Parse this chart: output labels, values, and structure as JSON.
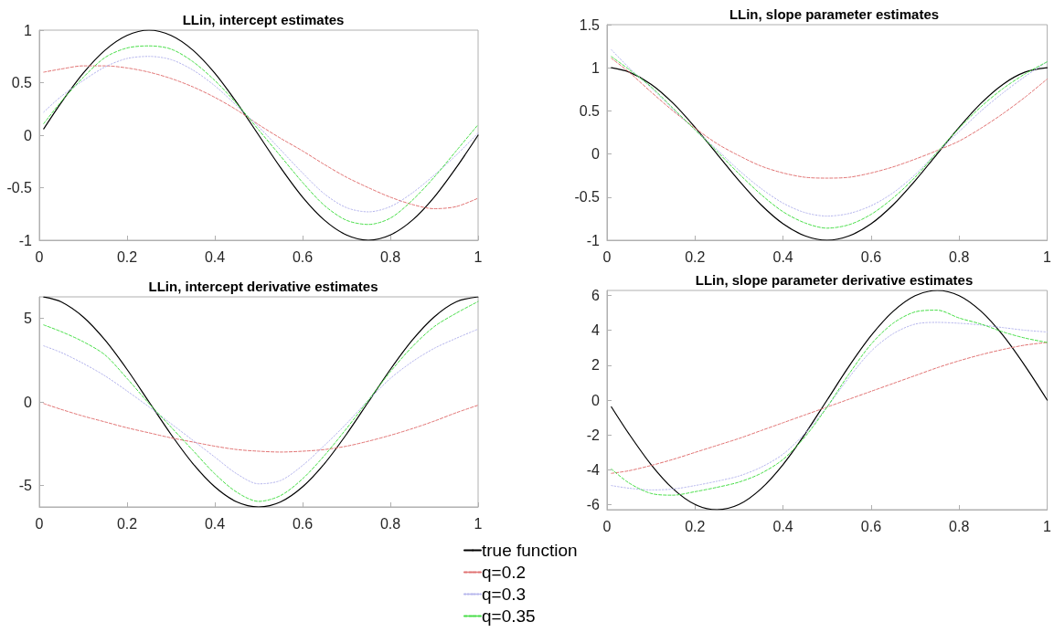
{
  "chart_data": [
    {
      "type": "line",
      "title": "LLin, intercept estimates",
      "x": [
        0.01,
        0.05,
        0.1,
        0.15,
        0.2,
        0.25,
        0.3,
        0.35,
        0.4,
        0.45,
        0.5,
        0.55,
        0.6,
        0.65,
        0.7,
        0.75,
        0.8,
        0.85,
        0.9,
        0.95,
        1
      ],
      "xlim": [
        0,
        1
      ],
      "xticks": [
        0,
        0.2,
        0.4,
        0.6,
        0.8,
        1
      ],
      "ylim": [
        -1,
        1
      ],
      "yticks": [
        -1,
        -0.5,
        0,
        0.5,
        1
      ],
      "series": [
        {
          "color": "#000000",
          "line_style": "solid",
          "values": [
            0.06,
            0.31,
            0.59,
            0.81,
            0.95,
            1,
            0.95,
            0.81,
            0.59,
            0.31,
            0,
            -0.31,
            -0.59,
            -0.81,
            -0.95,
            -1,
            -0.95,
            -0.81,
            -0.59,
            -0.31,
            0
          ]
        },
        {
          "color": "#e07070",
          "line_style": "dashed",
          "values": [
            0.6,
            0.63,
            0.66,
            0.66,
            0.64,
            0.6,
            0.54,
            0.46,
            0.36,
            0.24,
            0.1,
            -0.03,
            -0.15,
            -0.28,
            -0.4,
            -0.5,
            -0.59,
            -0.66,
            -0.7,
            -0.68,
            -0.6
          ]
        },
        {
          "color": "#b4b4ec",
          "line_style": "dotted",
          "values": [
            0.22,
            0.37,
            0.52,
            0.65,
            0.73,
            0.75,
            0.72,
            0.62,
            0.47,
            0.28,
            0.08,
            -0.14,
            -0.36,
            -0.56,
            -0.69,
            -0.73,
            -0.68,
            -0.55,
            -0.38,
            -0.19,
            0.02
          ]
        },
        {
          "color": "#44dd44",
          "line_style": "dashed",
          "values": [
            0.11,
            0.32,
            0.55,
            0.74,
            0.83,
            0.85,
            0.82,
            0.7,
            0.52,
            0.3,
            0.05,
            -0.2,
            -0.45,
            -0.67,
            -0.81,
            -0.85,
            -0.79,
            -0.62,
            -0.4,
            -0.15,
            0.1
          ]
        }
      ]
    },
    {
      "type": "line",
      "title": "LLin, slope parameter estimates",
      "x": [
        0.01,
        0.05,
        0.1,
        0.15,
        0.2,
        0.25,
        0.3,
        0.35,
        0.4,
        0.45,
        0.5,
        0.55,
        0.6,
        0.65,
        0.7,
        0.75,
        0.8,
        0.85,
        0.9,
        0.95,
        1
      ],
      "xlim": [
        0,
        1
      ],
      "xticks": [
        0,
        0.2,
        0.4,
        0.6,
        0.8,
        1
      ],
      "ylim": [
        -1,
        1.5
      ],
      "yticks": [
        -1,
        -0.5,
        0,
        0.5,
        1,
        1.5
      ],
      "series": [
        {
          "color": "#000000",
          "line_style": "solid",
          "values": [
            1,
            0.95,
            0.81,
            0.59,
            0.31,
            0,
            -0.31,
            -0.59,
            -0.81,
            -0.95,
            -1,
            -0.95,
            -0.81,
            -0.59,
            -0.31,
            0,
            0.31,
            0.59,
            0.81,
            0.95,
            1
          ]
        },
        {
          "color": "#e07070",
          "line_style": "dashed",
          "values": [
            1.11,
            0.95,
            0.72,
            0.5,
            0.3,
            0.12,
            -0.02,
            -0.14,
            -0.22,
            -0.27,
            -0.28,
            -0.27,
            -0.22,
            -0.15,
            -0.06,
            0.04,
            0.15,
            0.3,
            0.47,
            0.66,
            0.87
          ]
        },
        {
          "color": "#b4b4ec",
          "line_style": "dotted",
          "values": [
            1.21,
            1,
            0.77,
            0.52,
            0.28,
            0.05,
            -0.19,
            -0.4,
            -0.57,
            -0.68,
            -0.72,
            -0.69,
            -0.6,
            -0.45,
            -0.24,
            0.02,
            0.26,
            0.5,
            0.71,
            0.9,
            1.07
          ]
        },
        {
          "color": "#44dd44",
          "line_style": "dashed",
          "values": [
            1.13,
            0.98,
            0.78,
            0.53,
            0.28,
            0.03,
            -0.23,
            -0.47,
            -0.67,
            -0.8,
            -0.86,
            -0.82,
            -0.7,
            -0.51,
            -0.27,
            0.02,
            0.3,
            0.55,
            0.76,
            0.93,
            1.07
          ]
        }
      ]
    },
    {
      "type": "line",
      "title": "LLin, intercept derivative estimates",
      "x": [
        0.01,
        0.05,
        0.1,
        0.15,
        0.2,
        0.25,
        0.3,
        0.35,
        0.4,
        0.45,
        0.5,
        0.55,
        0.6,
        0.65,
        0.7,
        0.75,
        0.8,
        0.85,
        0.9,
        0.95,
        1
      ],
      "xlim": [
        0,
        1
      ],
      "xticks": [
        0,
        0.2,
        0.4,
        0.6,
        0.8,
        1
      ],
      "ylim": [
        -6.28,
        6.28
      ],
      "yticks": [
        -5,
        0,
        5
      ],
      "legend": "bottom",
      "series": [
        {
          "name": "true function",
          "color": "#000000",
          "line_style": "solid",
          "values": [
            6.27,
            5.98,
            5.08,
            3.69,
            1.94,
            0,
            -1.94,
            -3.69,
            -5.08,
            -5.98,
            -6.28,
            -5.98,
            -5.08,
            -3.69,
            -1.94,
            0,
            1.94,
            3.69,
            5.08,
            5.98,
            6.28
          ]
        },
        {
          "name": "q=0.2",
          "color": "#e07070",
          "line_style": "dashed",
          "values": [
            -0.1,
            -0.45,
            -0.85,
            -1.2,
            -1.55,
            -1.85,
            -2.15,
            -2.4,
            -2.65,
            -2.85,
            -2.95,
            -3,
            -2.95,
            -2.85,
            -2.65,
            -2.35,
            -2,
            -1.6,
            -1.15,
            -0.65,
            -0.2
          ]
        },
        {
          "name": "q=0.3",
          "color": "#b4b4ec",
          "line_style": "dotted",
          "values": [
            3.35,
            2.95,
            2.3,
            1.55,
            0.65,
            -0.3,
            -1.3,
            -2.3,
            -3.3,
            -4.3,
            -4.9,
            -4.7,
            -3.8,
            -2.6,
            -1.3,
            0.1,
            1.4,
            2.4,
            3.2,
            3.8,
            4.35
          ]
        },
        {
          "name": "q=0.35",
          "color": "#44dd44",
          "line_style": "dashed",
          "values": [
            4.6,
            4.2,
            3.6,
            2.8,
            1.4,
            -0.1,
            -1.5,
            -2.9,
            -4.3,
            -5.4,
            -5.95,
            -5.6,
            -4.6,
            -3.2,
            -1.6,
            0.1,
            1.8,
            3.3,
            4.5,
            5.3,
            6
          ]
        }
      ]
    },
    {
      "type": "line",
      "title": "LLin, slope parameter derivative estimates",
      "x": [
        0.01,
        0.05,
        0.1,
        0.15,
        0.2,
        0.25,
        0.3,
        0.35,
        0.4,
        0.45,
        0.5,
        0.55,
        0.6,
        0.65,
        0.7,
        0.75,
        0.8,
        0.85,
        0.9,
        0.95,
        1
      ],
      "xlim": [
        0,
        1
      ],
      "xticks": [
        0,
        0.2,
        0.4,
        0.6,
        0.8,
        1
      ],
      "ylim": [
        -6.28,
        6.28
      ],
      "yticks": [
        -6,
        -4,
        -2,
        0,
        2,
        4,
        6
      ],
      "series": [
        {
          "color": "#000000",
          "line_style": "solid",
          "values": [
            -0.39,
            -1.94,
            -3.69,
            -5.08,
            -5.98,
            -6.28,
            -5.98,
            -5.08,
            -3.69,
            -1.94,
            0,
            1.94,
            3.69,
            5.08,
            5.98,
            6.28,
            5.98,
            5.08,
            3.69,
            1.94,
            0
          ]
        },
        {
          "color": "#e07070",
          "line_style": "dashed",
          "values": [
            -4.2,
            -4.05,
            -3.75,
            -3.4,
            -3,
            -2.6,
            -2.2,
            -1.75,
            -1.3,
            -0.85,
            -0.4,
            0.05,
            0.5,
            0.95,
            1.4,
            1.85,
            2.25,
            2.6,
            2.9,
            3.15,
            3.3
          ]
        },
        {
          "color": "#b4b4ec",
          "line_style": "dotted",
          "values": [
            -4.9,
            -5.05,
            -5.15,
            -5.1,
            -4.9,
            -4.65,
            -4.35,
            -3.85,
            -3.1,
            -1.9,
            -0.4,
            1.3,
            2.8,
            3.8,
            4.35,
            4.45,
            4.4,
            4.3,
            4.15,
            4,
            3.9
          ]
        },
        {
          "color": "#44dd44",
          "line_style": "dashed",
          "values": [
            -3.95,
            -4.75,
            -5.35,
            -5.45,
            -5.25,
            -5,
            -4.7,
            -4.2,
            -3.4,
            -2.1,
            -0.4,
            1.5,
            3.2,
            4.4,
            5.05,
            5.15,
            4.7,
            4.35,
            3.9,
            3.55,
            3.3
          ]
        }
      ]
    }
  ]
}
